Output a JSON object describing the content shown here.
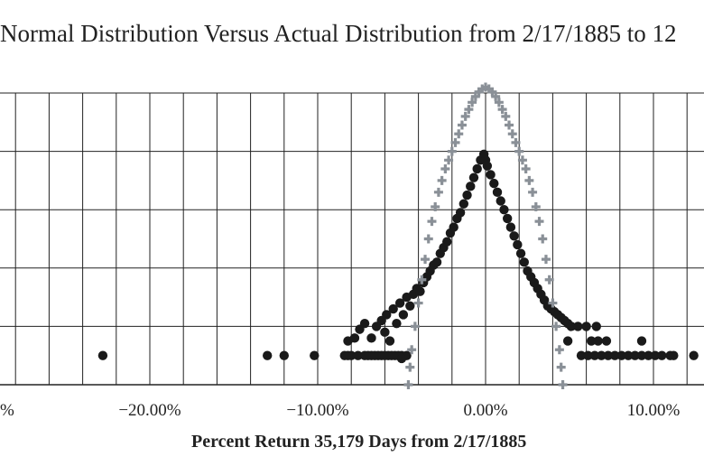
{
  "chart_data": {
    "type": "scatter",
    "title": "Normal Distribution Versus Actual Distribution from 2/17/1885 to 12",
    "xlabel": "Percent Return 35,179 Days from 2/17/1885",
    "ylabel": "",
    "x_tick_labels": [
      "%",
      "−20.00%",
      "−10.00%",
      "0.00%",
      "10.00%"
    ],
    "x_tick_values": [
      -30,
      -20,
      -10,
      0,
      10
    ],
    "xlim": [
      -29,
      13
    ],
    "ylim": [
      0,
      5
    ],
    "grid": true,
    "x_gridlines_every": 2,
    "series": [
      {
        "color": "#1a1a1a",
        "marker": "circle",
        "points": [
          [
            -22.8,
            0.5
          ],
          [
            -13,
            0.5
          ],
          [
            -12,
            0.5
          ],
          [
            -10.2,
            0.5
          ],
          [
            -8.4,
            0.5
          ],
          [
            -8.2,
            0.5
          ],
          [
            -8,
            0.5
          ],
          [
            -7.6,
            0.5
          ],
          [
            -7.2,
            0.5
          ],
          [
            -7,
            0.5
          ],
          [
            -6.8,
            0.5
          ],
          [
            -6.6,
            0.5
          ],
          [
            -6.4,
            0.5
          ],
          [
            -6.2,
            0.5
          ],
          [
            -6,
            0.5
          ],
          [
            -5.8,
            0.5
          ],
          [
            -5.6,
            0.5
          ],
          [
            -5.4,
            0.5
          ],
          [
            -5.2,
            0.5
          ],
          [
            -5,
            0.5
          ],
          [
            -4.7,
            0.5
          ],
          [
            -5,
            0.45
          ],
          [
            -8.2,
            0.75
          ],
          [
            -7.8,
            0.8
          ],
          [
            -7.5,
            0.95
          ],
          [
            -7.2,
            1.05
          ],
          [
            -6.8,
            0.8
          ],
          [
            -6.5,
            1.0
          ],
          [
            -6.2,
            1.1
          ],
          [
            -6,
            0.9
          ],
          [
            -5.9,
            1.2
          ],
          [
            -5.7,
            0.75
          ],
          [
            -5.5,
            1.3
          ],
          [
            -5.3,
            1.05
          ],
          [
            -5.1,
            1.4
          ],
          [
            -4.9,
            1.2
          ],
          [
            -4.7,
            1.5
          ],
          [
            -4.5,
            1.35
          ],
          [
            -4.3,
            1.55
          ],
          [
            -4.1,
            1.65
          ],
          [
            -3.9,
            1.6
          ],
          [
            -3.7,
            1.75
          ],
          [
            -3.5,
            1.85
          ],
          [
            -3.3,
            1.95
          ],
          [
            -3.1,
            2.05
          ],
          [
            -2.9,
            2.1
          ],
          [
            -2.7,
            2.25
          ],
          [
            -2.5,
            2.35
          ],
          [
            -2.3,
            2.45
          ],
          [
            -2.1,
            2.6
          ],
          [
            -1.9,
            2.7
          ],
          [
            -1.7,
            2.85
          ],
          [
            -1.5,
            2.95
          ],
          [
            -1.3,
            3.1
          ],
          [
            -1.1,
            3.25
          ],
          [
            -0.9,
            3.4
          ],
          [
            -0.7,
            3.55
          ],
          [
            -0.5,
            3.7
          ],
          [
            -0.3,
            3.85
          ],
          [
            -0.1,
            3.95
          ],
          [
            0,
            3.85
          ],
          [
            0.1,
            3.75
          ],
          [
            0.3,
            3.6
          ],
          [
            0.5,
            3.45
          ],
          [
            0.7,
            3.3
          ],
          [
            0.9,
            3.15
          ],
          [
            1.1,
            3.0
          ],
          [
            1.3,
            2.85
          ],
          [
            1.5,
            2.7
          ],
          [
            1.7,
            2.55
          ],
          [
            1.9,
            2.4
          ],
          [
            2.1,
            2.25
          ],
          [
            2.3,
            2.1
          ],
          [
            2.5,
            1.95
          ],
          [
            2.7,
            1.85
          ],
          [
            2.9,
            1.75
          ],
          [
            3.1,
            1.65
          ],
          [
            3.3,
            1.55
          ],
          [
            3.5,
            1.45
          ],
          [
            3.7,
            1.35
          ],
          [
            3.9,
            1.3
          ],
          [
            4.1,
            1.25
          ],
          [
            4.3,
            1.2
          ],
          [
            4.5,
            1.15
          ],
          [
            4.7,
            1.1
          ],
          [
            4.9,
            1.05
          ],
          [
            5.1,
            1.0
          ],
          [
            5.5,
            1.0
          ],
          [
            6,
            1.0
          ],
          [
            6.6,
            1.0
          ],
          [
            4.9,
            0.75
          ],
          [
            6.3,
            0.75
          ],
          [
            6.7,
            0.75
          ],
          [
            7.2,
            0.75
          ],
          [
            9.3,
            0.75
          ],
          [
            5.7,
            0.5
          ],
          [
            6.1,
            0.5
          ],
          [
            6.5,
            0.5
          ],
          [
            6.9,
            0.5
          ],
          [
            7.3,
            0.5
          ],
          [
            7.7,
            0.5
          ],
          [
            8.1,
            0.5
          ],
          [
            8.5,
            0.5
          ],
          [
            8.9,
            0.5
          ],
          [
            9.3,
            0.5
          ],
          [
            9.7,
            0.5
          ],
          [
            10.1,
            0.5
          ],
          [
            10.5,
            0.5
          ],
          [
            11.0,
            0.5
          ],
          [
            11.2,
            0.5
          ],
          [
            12.4,
            0.5
          ]
        ]
      },
      {
        "color": "#8a9097",
        "marker": "plus",
        "points": [
          [
            -4.6,
            0.0
          ],
          [
            -4.5,
            0.3
          ],
          [
            -4.4,
            0.6
          ],
          [
            -4.2,
            1.0
          ],
          [
            -4.0,
            1.4
          ],
          [
            -3.8,
            1.8
          ],
          [
            -3.6,
            2.15
          ],
          [
            -3.4,
            2.5
          ],
          [
            -3.2,
            2.8
          ],
          [
            -3.0,
            3.05
          ],
          [
            -2.8,
            3.3
          ],
          [
            -2.6,
            3.5
          ],
          [
            -2.4,
            3.7
          ],
          [
            -2.2,
            3.85
          ],
          [
            -2.0,
            4.0
          ],
          [
            -1.8,
            4.15
          ],
          [
            -1.6,
            4.3
          ],
          [
            -1.4,
            4.45
          ],
          [
            -1.2,
            4.6
          ],
          [
            -1.0,
            4.72
          ],
          [
            -0.8,
            4.84
          ],
          [
            -0.6,
            4.94
          ],
          [
            -0.4,
            5.02
          ],
          [
            -0.2,
            5.07
          ],
          [
            0,
            5.1
          ],
          [
            0.2,
            5.07
          ],
          [
            0.4,
            5.02
          ],
          [
            0.6,
            4.94
          ],
          [
            0.8,
            4.84
          ],
          [
            1.0,
            4.72
          ],
          [
            1.2,
            4.6
          ],
          [
            1.4,
            4.45
          ],
          [
            1.6,
            4.3
          ],
          [
            1.8,
            4.15
          ],
          [
            2.0,
            4.0
          ],
          [
            2.2,
            3.85
          ],
          [
            2.4,
            3.7
          ],
          [
            2.6,
            3.5
          ],
          [
            2.8,
            3.3
          ],
          [
            3.0,
            3.05
          ],
          [
            3.2,
            2.8
          ],
          [
            3.4,
            2.5
          ],
          [
            3.6,
            2.15
          ],
          [
            3.8,
            1.8
          ],
          [
            4.0,
            1.4
          ],
          [
            4.2,
            1.0
          ],
          [
            4.4,
            0.6
          ],
          [
            4.5,
            0.3
          ],
          [
            4.6,
            0.0
          ]
        ]
      }
    ]
  }
}
